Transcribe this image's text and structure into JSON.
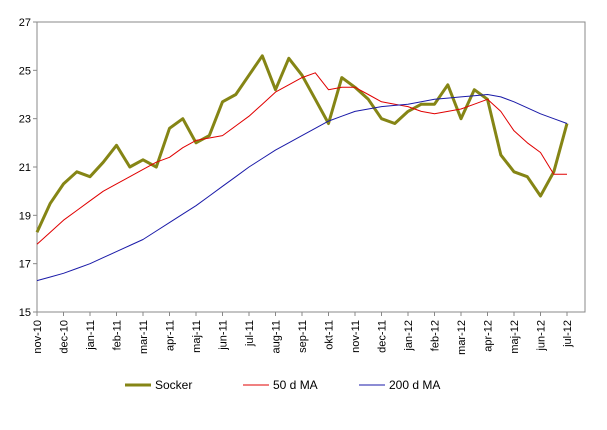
{
  "chart_data": {
    "type": "line",
    "categories": [
      "nov-10",
      null,
      "dec-10",
      null,
      "jan-11",
      null,
      "feb-11",
      null,
      "mar-11",
      null,
      "apr-11",
      null,
      "maj-11",
      null,
      "jun-11",
      null,
      "jul-11",
      null,
      "aug-11",
      null,
      "sep-11",
      null,
      "okt-11",
      null,
      "nov-11",
      null,
      "dec-11",
      null,
      "jan-12",
      null,
      "feb-12",
      null,
      "mar-12",
      null,
      "apr-12",
      null,
      "maj-12",
      null,
      "jun-12",
      null,
      "jul-12"
    ],
    "series": [
      {
        "name": "Socker",
        "color": "#858515",
        "values": [
          18.3,
          19.5,
          20.3,
          20.8,
          20.6,
          21.2,
          21.9,
          21.0,
          21.3,
          21.0,
          22.6,
          23.0,
          22.0,
          22.3,
          23.7,
          24.0,
          24.8,
          25.6,
          24.2,
          25.5,
          24.8,
          23.8,
          22.8,
          24.7,
          24.3,
          23.8,
          23.0,
          22.8,
          23.3,
          23.6,
          23.6,
          24.4,
          23.0,
          24.2,
          23.8,
          21.5,
          20.8,
          20.6,
          19.8,
          20.8,
          22.8
        ]
      },
      {
        "name": "50 d MA",
        "color": "#e00000",
        "values": [
          17.8,
          18.3,
          18.8,
          19.2,
          19.6,
          20.0,
          20.3,
          20.6,
          20.9,
          21.2,
          21.4,
          21.8,
          22.1,
          22.2,
          22.3,
          22.7,
          23.1,
          23.6,
          24.1,
          24.4,
          24.7,
          24.9,
          24.2,
          24.3,
          24.3,
          24.0,
          23.7,
          23.6,
          23.5,
          23.3,
          23.2,
          23.3,
          23.4,
          23.6,
          23.8,
          23.3,
          22.5,
          22.0,
          21.6,
          20.7,
          20.7
        ]
      },
      {
        "name": "200 d MA",
        "color": "#1a1aa8",
        "values": [
          16.3,
          16.45,
          16.6,
          16.8,
          17.0,
          17.25,
          17.5,
          17.75,
          18.0,
          18.35,
          18.7,
          19.05,
          19.4,
          19.8,
          20.2,
          20.6,
          21.0,
          21.35,
          21.7,
          22.0,
          22.3,
          22.6,
          22.9,
          23.1,
          23.3,
          23.4,
          23.5,
          23.55,
          23.6,
          23.7,
          23.8,
          23.85,
          23.9,
          23.95,
          24.0,
          23.9,
          23.7,
          23.45,
          23.2,
          23.0,
          22.8
        ]
      }
    ],
    "ylim": [
      15,
      27
    ],
    "yticks": [
      15,
      17,
      19,
      21,
      23,
      25,
      27
    ]
  }
}
